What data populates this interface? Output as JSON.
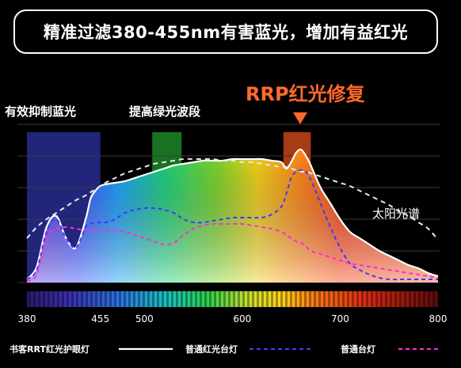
{
  "headline": "精准过滤380-455nm有害蓝光，增加有益红光",
  "chart_data": {
    "type": "area",
    "x": [
      380,
      390,
      400,
      410,
      420,
      430,
      440,
      445,
      450,
      455,
      460,
      470,
      480,
      490,
      500,
      510,
      520,
      530,
      540,
      550,
      560,
      570,
      580,
      590,
      600,
      610,
      620,
      630,
      640,
      645,
      650,
      655,
      660,
      665,
      670,
      680,
      690,
      700,
      710,
      720,
      730,
      740,
      750,
      760,
      770,
      780,
      790,
      800
    ],
    "xlim": [
      380,
      800
    ],
    "xticks": [
      380,
      455,
      500,
      600,
      700,
      800
    ],
    "ylim": [
      0,
      100
    ],
    "grid": true,
    "series": [
      {
        "name": "书客RRT红光护眼灯",
        "style": "solid-fill",
        "color": "#ffffff",
        "values": [
          2,
          10,
          35,
          42,
          28,
          22,
          40,
          53,
          58,
          61,
          62,
          63,
          64,
          66,
          68,
          70,
          72,
          74,
          75,
          76,
          77,
          77,
          77,
          78,
          78,
          78,
          78,
          77,
          76,
          72,
          76,
          82,
          84,
          80,
          74,
          60,
          50,
          40,
          32,
          28,
          24,
          20,
          17,
          14,
          11,
          9,
          6,
          4
        ]
      },
      {
        "name": "普通红光台灯",
        "style": "dashed",
        "color": "#3b3bff",
        "values": [
          2,
          8,
          32,
          40,
          28,
          22,
          35,
          37,
          38,
          38,
          38,
          40,
          44,
          46,
          47,
          47,
          46,
          44,
          40,
          38,
          38,
          39,
          40,
          41,
          41,
          41,
          41,
          43,
          48,
          56,
          66,
          70,
          71,
          70,
          65,
          50,
          35,
          22,
          12,
          8,
          5,
          3,
          2,
          2,
          2,
          2,
          2,
          2
        ]
      },
      {
        "name": "普通台灯",
        "style": "dashed",
        "color": "#ff2bd6",
        "values": [
          1,
          5,
          28,
          34,
          35,
          34,
          33,
          33,
          33,
          33,
          33,
          33,
          32,
          30,
          28,
          26,
          24,
          25,
          30,
          34,
          36,
          37,
          37,
          37,
          37,
          36,
          35,
          34,
          32,
          30,
          28,
          26,
          25,
          23,
          20,
          18,
          16,
          14,
          12,
          11,
          10,
          9,
          8,
          7,
          6,
          5,
          4,
          3
        ]
      },
      {
        "name": "太阳光谱",
        "style": "dashed",
        "color": "#e8e8e8",
        "values": [
          28,
          35,
          40,
          44,
          48,
          52,
          55,
          57,
          59,
          61,
          63,
          66,
          69,
          71,
          73,
          75,
          76,
          77,
          78,
          78,
          78,
          78,
          77,
          77,
          76,
          76,
          75,
          74,
          73,
          73,
          72,
          71,
          70,
          70,
          69,
          67,
          65,
          63,
          61,
          58,
          55,
          52,
          49,
          45,
          42,
          38,
          34,
          27
        ]
      }
    ],
    "bands": [
      {
        "label": "有效抑制蓝光",
        "from": 380,
        "to": 455,
        "color": "#2a2f9a"
      },
      {
        "label": "提高绿光波段",
        "from": 508,
        "to": 538,
        "color": "#1e8f2a"
      },
      {
        "label": "RRP红光修复",
        "from": 642,
        "to": 670,
        "color": "#d04a1c"
      }
    ],
    "annotations": {
      "sun": "太阳光谱",
      "rrp": "RRP红光修复"
    }
  }
}
